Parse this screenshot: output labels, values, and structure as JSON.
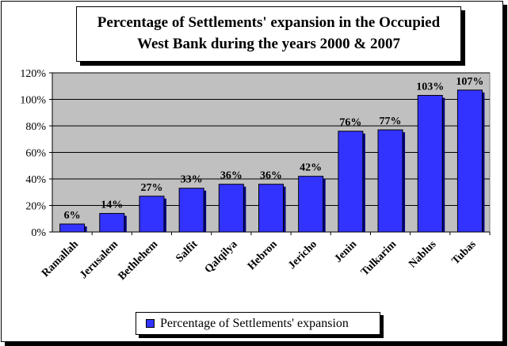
{
  "chart_data": {
    "type": "bar",
    "title_line1": "Percentage of Settlements' expansion in the Occupied",
    "title_line2": "West Bank during the years 2000 & 2007",
    "categories": [
      "Ramallah",
      "Jerusalem",
      "Bethlehem",
      "Salfit",
      "Qalqilya",
      "Hebron",
      "Jericho",
      "Jenin",
      "Tulkarim",
      "Nablus",
      "Tubas"
    ],
    "series": [
      {
        "name": "Percentage of Settlements' expansion",
        "values": [
          6,
          14,
          27,
          33,
          36,
          36,
          42,
          76,
          77,
          103,
          107
        ],
        "labels": [
          "6%",
          "14%",
          "27%",
          "33%",
          "36%",
          "36%",
          "42%",
          "76%",
          "77%",
          "103%",
          "107%"
        ]
      }
    ],
    "yticks": [
      "0%",
      "20%",
      "40%",
      "60%",
      "80%",
      "100%",
      "120%"
    ],
    "ylim": [
      0,
      120
    ],
    "grid": true,
    "legend_position": "bottom",
    "colors": {
      "bar": "#3333ff",
      "bar_side": "#000080",
      "plot_bg": "#c0c0c0"
    }
  }
}
